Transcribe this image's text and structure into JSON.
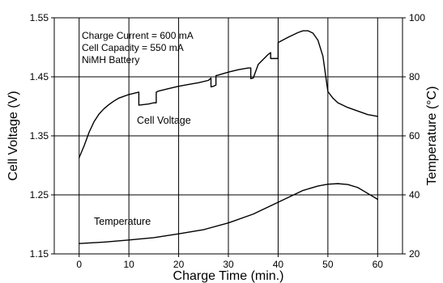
{
  "chart_data": {
    "type": "line",
    "title": "",
    "xlabel": "Charge Time (min.)",
    "ylabel_left": "Cell Voltage (V)",
    "ylabel_right": "Temperature (°C)",
    "xlim": [
      -5,
      65
    ],
    "ylim_left": [
      1.15,
      1.55
    ],
    "ylim_right": [
      20,
      100
    ],
    "x_ticks": [
      0,
      10,
      20,
      30,
      40,
      50,
      60
    ],
    "y_left_ticks": [
      "1.15",
      "1.25",
      "1.35",
      "1.45",
      "1.55"
    ],
    "y_right_ticks": [
      "20",
      "40",
      "60",
      "80",
      "100"
    ],
    "grid": true,
    "legend": "none",
    "annotations": [
      "Charge Current = 600 mA",
      "Cell Capacity = 550 mA",
      "NiMH Battery"
    ],
    "series": [
      {
        "name": "Cell Voltage",
        "axis": "left",
        "x": [
          0,
          1,
          2,
          3,
          4,
          5,
          6,
          7,
          8,
          9,
          10,
          11,
          12,
          12,
          13,
          14,
          15,
          15.5,
          15.5,
          16,
          18,
          20,
          22,
          24,
          26,
          26.5,
          26.5,
          27,
          27.5,
          27.5,
          28,
          30,
          32,
          34,
          34.5,
          34.5,
          35,
          36,
          38,
          38.5,
          38.5,
          40,
          40,
          42,
          44,
          45,
          46,
          47,
          48,
          49,
          50,
          51,
          52,
          54,
          56,
          58,
          60
        ],
        "values": [
          1.313,
          1.333,
          1.356,
          1.374,
          1.387,
          1.396,
          1.403,
          1.409,
          1.414,
          1.417,
          1.42,
          1.422,
          1.424,
          1.402,
          1.403,
          1.404,
          1.406,
          1.406,
          1.424,
          1.426,
          1.43,
          1.434,
          1.437,
          1.44,
          1.444,
          1.448,
          1.433,
          1.434,
          1.436,
          1.452,
          1.453,
          1.458,
          1.462,
          1.465,
          1.465,
          1.447,
          1.448,
          1.471,
          1.488,
          1.491,
          1.481,
          1.481,
          1.508,
          1.517,
          1.525,
          1.528,
          1.528,
          1.524,
          1.512,
          1.485,
          1.425,
          1.414,
          1.406,
          1.398,
          1.392,
          1.386,
          1.383
        ]
      },
      {
        "name": "Temperature",
        "axis": "right",
        "x": [
          0,
          5,
          10,
          15,
          20,
          25,
          30,
          35,
          40,
          45,
          48,
          50,
          52,
          54,
          56,
          58,
          60
        ],
        "values": [
          23.5,
          24.0,
          24.7,
          25.5,
          26.8,
          28.2,
          30.5,
          33.5,
          37.5,
          41.5,
          43.0,
          43.6,
          43.8,
          43.5,
          42.5,
          40.5,
          38.5
        ]
      }
    ]
  }
}
